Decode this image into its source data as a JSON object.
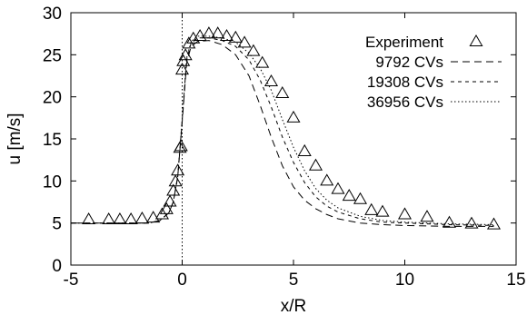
{
  "chart_data": {
    "type": "line",
    "title": "",
    "xlabel": "x/R",
    "ylabel": "u [m/s]",
    "xlim": [
      -5,
      15
    ],
    "ylim": [
      0,
      30
    ],
    "xticks": [
      "-5",
      "0",
      "5",
      "10",
      "15"
    ],
    "yticks": [
      "0",
      "5",
      "10",
      "15",
      "20",
      "25",
      "30"
    ],
    "grid": false,
    "legend_position": "top-right",
    "vertical_reference_line": {
      "x": 0,
      "style": "dotted"
    },
    "series": [
      {
        "name": "Experiment",
        "style": "markers",
        "marker": "triangle-open",
        "x": [
          -4.2,
          -3.3,
          -2.8,
          -2.3,
          -1.8,
          -1.3,
          -0.9,
          -0.7,
          -0.55,
          -0.4,
          -0.3,
          -0.2,
          -0.1,
          -0.05,
          0.0,
          0.05,
          0.15,
          0.3,
          0.5,
          0.8,
          1.2,
          1.6,
          2.0,
          2.4,
          2.8,
          3.2,
          3.6,
          4.0,
          4.5,
          5.0,
          5.5,
          6.0,
          6.5,
          7.0,
          7.5,
          8.0,
          8.5,
          9.0,
          10.0,
          11.0,
          12.0,
          13.0,
          14.0
        ],
        "y": [
          5.4,
          5.4,
          5.4,
          5.4,
          5.5,
          5.6,
          6.0,
          6.6,
          7.5,
          8.8,
          9.9,
          11.2,
          13.9,
          14.1,
          23.2,
          24.2,
          24.9,
          26.3,
          26.9,
          27.2,
          27.5,
          27.5,
          27.2,
          27.0,
          26.4,
          25.4,
          24.0,
          21.8,
          20.4,
          17.5,
          13.5,
          11.8,
          10.0,
          9.0,
          8.2,
          7.8,
          6.5,
          6.3,
          6.0,
          5.7,
          5.0,
          4.9,
          4.8
        ]
      },
      {
        "name": "9792 CVs",
        "style": "long-dash",
        "x": [
          -5.0,
          -1.5,
          -1.0,
          -0.6,
          -0.4,
          -0.2,
          0.0,
          0.2,
          0.4,
          0.7,
          1.2,
          1.8,
          2.4,
          3.0,
          3.5,
          4.0,
          4.5,
          5.0,
          5.5,
          6.0,
          6.5,
          7.0,
          8.0,
          9.0,
          10.0,
          12.0,
          14.0
        ],
        "y": [
          5.0,
          5.0,
          5.3,
          6.2,
          7.5,
          10.5,
          17.0,
          24.0,
          26.0,
          26.6,
          26.7,
          26.2,
          25.0,
          22.5,
          19.0,
          15.2,
          11.8,
          9.3,
          7.7,
          6.7,
          6.0,
          5.5,
          5.0,
          4.8,
          4.7,
          4.6,
          4.6
        ]
      },
      {
        "name": "19308 CVs",
        "style": "short-dash",
        "x": [
          -5.0,
          -1.5,
          -1.0,
          -0.6,
          -0.4,
          -0.2,
          0.0,
          0.2,
          0.4,
          0.7,
          1.2,
          1.8,
          2.4,
          3.0,
          3.5,
          4.0,
          4.5,
          5.0,
          5.5,
          6.0,
          6.5,
          7.0,
          8.0,
          9.0,
          10.0,
          12.0,
          14.0
        ],
        "y": [
          5.0,
          5.0,
          5.3,
          6.2,
          7.5,
          10.5,
          17.2,
          24.4,
          26.4,
          27.0,
          27.0,
          26.7,
          26.0,
          24.4,
          22.0,
          18.8,
          15.2,
          12.2,
          9.8,
          8.1,
          7.0,
          6.3,
          5.5,
          5.1,
          5.0,
          4.8,
          4.7
        ]
      },
      {
        "name": "36956 CVs",
        "style": "dotted",
        "x": [
          -5.0,
          -1.5,
          -1.0,
          -0.6,
          -0.4,
          -0.2,
          0.0,
          0.2,
          0.4,
          0.7,
          1.2,
          1.8,
          2.4,
          3.0,
          3.5,
          4.0,
          4.5,
          5.0,
          5.5,
          6.0,
          6.5,
          7.0,
          8.0,
          9.0,
          10.0,
          12.0,
          14.0
        ],
        "y": [
          5.0,
          5.0,
          5.3,
          6.2,
          7.5,
          10.5,
          17.4,
          24.6,
          26.6,
          27.2,
          27.2,
          27.0,
          26.5,
          25.2,
          23.4,
          20.8,
          17.3,
          14.0,
          11.2,
          9.1,
          7.7,
          6.8,
          5.8,
          5.3,
          5.1,
          4.9,
          4.8
        ]
      }
    ]
  }
}
